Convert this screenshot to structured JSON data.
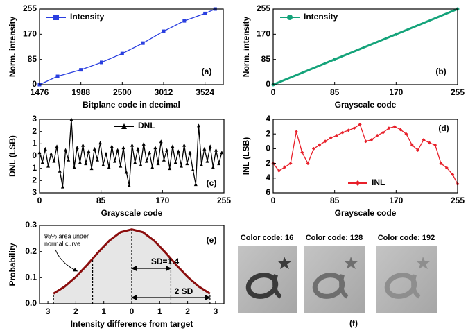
{
  "chart_data": [
    {
      "type": "line",
      "annotations": [
        "(a)"
      ],
      "xlabel": "Bitplane code in decimal",
      "ylabel": "Norm. intensity",
      "x": [
        1476,
        1700,
        1988,
        2244,
        2500,
        2756,
        3012,
        3268,
        3524,
        3650
      ],
      "series": [
        {
          "name": "Intensity",
          "color": "#2a3fe0",
          "marker": "square",
          "values": [
            0,
            28,
            50,
            75,
            105,
            140,
            180,
            215,
            240,
            255
          ]
        }
      ],
      "xlim": [
        1476,
        3750
      ],
      "xticks": [
        1476,
        1988,
        2500,
        3012,
        3524
      ],
      "ylim": [
        0,
        255
      ],
      "yticks": [
        0,
        85,
        170,
        255
      ],
      "legend": "upper left"
    },
    {
      "type": "line",
      "annotations": [
        "(b)"
      ],
      "xlabel": "Grayscale code",
      "ylabel": "Norm. intensity",
      "x": [
        0,
        85,
        170,
        255
      ],
      "series": [
        {
          "name": "Intensity",
          "color": "#14a37a",
          "marker": "circle",
          "values": [
            0,
            85,
            170,
            255
          ]
        }
      ],
      "xlim": [
        0,
        255
      ],
      "xticks": [
        0,
        85,
        170,
        255
      ],
      "ylim": [
        0,
        255
      ],
      "yticks": [
        0,
        85,
        170,
        255
      ],
      "legend": "upper left"
    },
    {
      "type": "line",
      "annotations": [
        "(c)"
      ],
      "xlabel": "Grayscale code",
      "ylabel": "DNL (LSB)",
      "x": [
        0,
        4,
        8,
        12,
        16,
        20,
        24,
        28,
        32,
        36,
        40,
        44,
        48,
        52,
        56,
        60,
        64,
        68,
        72,
        76,
        80,
        84,
        88,
        92,
        96,
        100,
        104,
        108,
        112,
        116,
        120,
        124,
        128,
        132,
        136,
        140,
        144,
        148,
        152,
        156,
        160,
        164,
        168,
        172,
        176,
        180,
        184,
        188,
        192,
        196,
        200,
        204,
        208,
        212,
        216,
        220,
        224,
        228,
        232,
        236,
        240,
        244,
        248,
        252
      ],
      "series": [
        {
          "name": "DNL",
          "color": "#000000",
          "marker": "triangle",
          "values": [
            0.3,
            -0.5,
            0.6,
            -0.8,
            0.2,
            -0.4,
            0.8,
            -1.2,
            -2.5,
            0.5,
            -0.3,
            3.0,
            -0.9,
            0.7,
            -0.5,
            0.9,
            -0.6,
            0.4,
            -1.0,
            0.6,
            -0.3,
            1.1,
            -0.7,
            0.2,
            -0.9,
            0.8,
            -0.4,
            0.5,
            -0.8,
            0.7,
            -1.3,
            -2.4,
            0.9,
            -0.5,
            0.6,
            -0.7,
            1.0,
            -0.4,
            0.3,
            -0.9,
            0.7,
            -0.6,
            1.2,
            -0.3,
            0.5,
            -1.0,
            0.8,
            -0.5,
            0.4,
            -0.8,
            0.9,
            -0.6,
            0.3,
            -1.1,
            -2.3,
            2.5,
            -0.7,
            0.6,
            -0.4,
            0.8,
            -0.9,
            0.5,
            -0.6,
            0.3
          ]
        }
      ],
      "xlim": [
        0,
        255
      ],
      "xticks": [
        0,
        85,
        170,
        255
      ],
      "ylim": [
        -3,
        3
      ],
      "yticks": [
        3,
        2,
        1,
        0,
        {
          "value": -1,
          "label": "1"
        },
        {
          "value": -2,
          "label": "2"
        },
        {
          "value": -3,
          "label": "3"
        }
      ],
      "legend": "upper center"
    },
    {
      "type": "line",
      "annotations": [
        "(d)"
      ],
      "xlabel": "Grayscale code",
      "ylabel": "INL (LSB)",
      "x": [
        0,
        8,
        16,
        24,
        32,
        40,
        48,
        56,
        64,
        72,
        80,
        88,
        96,
        104,
        112,
        120,
        128,
        136,
        144,
        152,
        160,
        168,
        176,
        184,
        192,
        200,
        208,
        216,
        224,
        232,
        240,
        248,
        255
      ],
      "series": [
        {
          "name": "INL",
          "color": "#e8202a",
          "marker": "diamond",
          "values": [
            -2,
            -3,
            -2.5,
            -2,
            2.3,
            -0.5,
            -2,
            0,
            0.5,
            1,
            1.5,
            1.8,
            2.2,
            2.5,
            2.8,
            3.3,
            1.0,
            1.2,
            1.8,
            2.2,
            2.8,
            3.0,
            2.6,
            2.0,
            0.5,
            -0.2,
            1.2,
            0.8,
            0.5,
            -2.0,
            -2.6,
            -3.5,
            -4.8
          ]
        }
      ],
      "xlim": [
        0,
        255
      ],
      "xticks": [
        0,
        85,
        170,
        255
      ],
      "ylim": [
        -6,
        4
      ],
      "yticks": [
        4,
        2,
        0,
        {
          "value": -2,
          "label": "2"
        },
        {
          "value": -4,
          "label": "4"
        },
        {
          "value": -6,
          "label": "6"
        }
      ],
      "legend": "lower center"
    },
    {
      "type": "area",
      "annotations": [
        "(e)",
        "95% area under",
        "normal curve",
        "SD=1.4",
        "2 SD"
      ],
      "xlabel": "Intensity difference from target",
      "ylabel": "Probability",
      "x": [
        -2.8,
        -2.4,
        -2.0,
        -1.6,
        -1.2,
        -0.8,
        -0.4,
        0,
        0.4,
        0.8,
        1.2,
        1.6,
        2.0,
        2.4,
        2.8
      ],
      "series": [
        {
          "color": "#8b0d0d",
          "fill_color": "#e6e6e6",
          "values": [
            0.039,
            0.066,
            0.103,
            0.148,
            0.197,
            0.242,
            0.274,
            0.285,
            0.274,
            0.242,
            0.197,
            0.148,
            0.103,
            0.066,
            0.039
          ]
        }
      ],
      "reference_lines": [
        -2.8,
        -1.4,
        0,
        1.4,
        2.8
      ],
      "xlim": [
        -3.3,
        3.3
      ],
      "xticks": [
        {
          "value": -3,
          "label": "3"
        },
        {
          "value": -2,
          "label": "2"
        },
        {
          "value": -1,
          "label": "1"
        },
        0,
        1,
        2,
        3
      ],
      "ylim": [
        0,
        0.3
      ],
      "yticks": [
        {
          "value": 0,
          "label": "0.0"
        },
        0.1,
        0.2,
        0.3
      ]
    }
  ],
  "photos": {
    "captions": [
      "Color code: 16",
      "Color code: 128",
      "Color code: 192"
    ],
    "label": "(f)"
  }
}
